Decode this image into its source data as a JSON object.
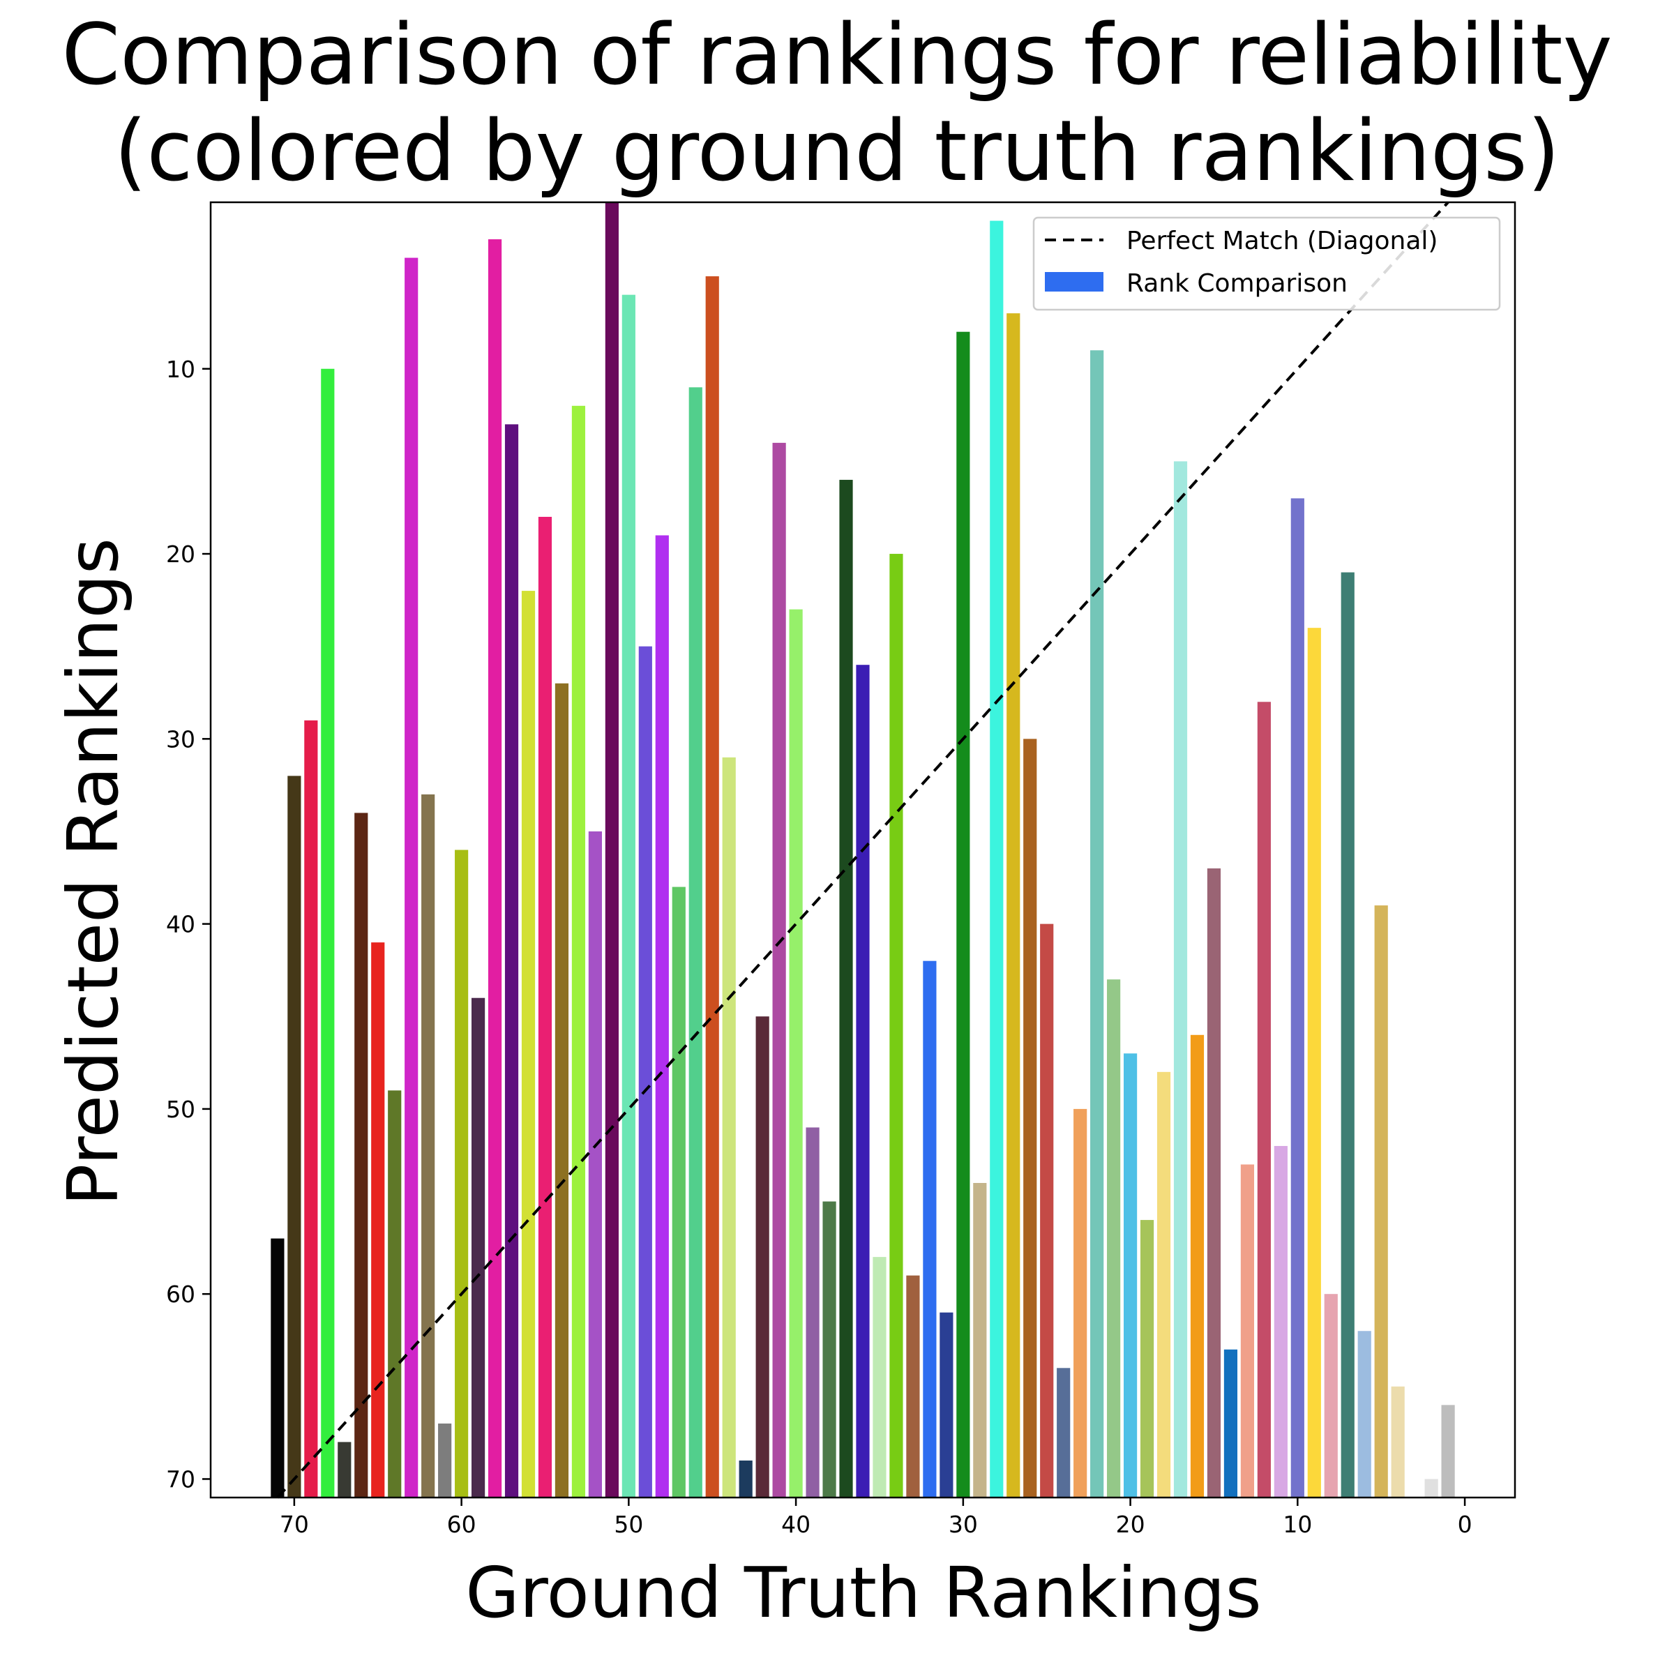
{
  "chart_data": {
    "type": "bar",
    "title": "Comparison of rankings for reliability\n(colored by ground truth rankings)",
    "title_lines": [
      "Comparison of rankings for reliability",
      "(colored by ground truth rankings)"
    ],
    "xlabel": "Ground Truth Rankings",
    "ylabel": "Predicted Rankings",
    "xlim": [
      75,
      -3
    ],
    "ylim": [
      71,
      1
    ],
    "y_inverted": true,
    "x_inverted": true,
    "xticks": [
      70,
      60,
      50,
      40,
      30,
      20,
      10,
      0
    ],
    "yticks": [
      10,
      20,
      30,
      40,
      50,
      60,
      70
    ],
    "grid": false,
    "legend_placement": "top-right",
    "legend": [
      {
        "label": "Perfect Match (Diagonal)",
        "style": "dashed-line",
        "color": "#000000"
      },
      {
        "label": "Rank Comparison",
        "style": "patch",
        "color": "#2e6df0"
      }
    ],
    "diagonal": {
      "x": [
        71,
        0
      ],
      "y": [
        71,
        0
      ],
      "color": "#000000",
      "dash": true
    },
    "bars": [
      {
        "x": 71,
        "y": 57,
        "color": "#050505"
      },
      {
        "x": 70,
        "y": 32,
        "color": "#453818"
      },
      {
        "x": 69,
        "y": 29,
        "color": "#e51c4a"
      },
      {
        "x": 68,
        "y": 10,
        "color": "#33ee3d"
      },
      {
        "x": 67,
        "y": 68,
        "color": "#383a33"
      },
      {
        "x": 66,
        "y": 34,
        "color": "#5c2614"
      },
      {
        "x": 65,
        "y": 41,
        "color": "#e8241f"
      },
      {
        "x": 64,
        "y": 49,
        "color": "#5f7828"
      },
      {
        "x": 63,
        "y": 4,
        "color": "#cf25c8"
      },
      {
        "x": 62,
        "y": 33,
        "color": "#84744e"
      },
      {
        "x": 61,
        "y": 67,
        "color": "#7d7d7d"
      },
      {
        "x": 60,
        "y": 36,
        "color": "#a7be14"
      },
      {
        "x": 59,
        "y": 44,
        "color": "#4b2a4d"
      },
      {
        "x": 58,
        "y": 3,
        "color": "#e21ea2"
      },
      {
        "x": 57,
        "y": 13,
        "color": "#5e0f7e"
      },
      {
        "x": 56,
        "y": 22,
        "color": "#d2e034"
      },
      {
        "x": 55,
        "y": 18,
        "color": "#ea1f72"
      },
      {
        "x": 54,
        "y": 27,
        "color": "#8d7022"
      },
      {
        "x": 53,
        "y": 12,
        "color": "#9df13e"
      },
      {
        "x": 52,
        "y": 35,
        "color": "#a552c6"
      },
      {
        "x": 51,
        "y": 1,
        "color": "#6a0a5c"
      },
      {
        "x": 50,
        "y": 6,
        "color": "#6be6b4"
      },
      {
        "x": 49,
        "y": 25,
        "color": "#6b4ed8"
      },
      {
        "x": 48,
        "y": 19,
        "color": "#b02ff0"
      },
      {
        "x": 47,
        "y": 38,
        "color": "#5fc764"
      },
      {
        "x": 46,
        "y": 11,
        "color": "#52cf8c"
      },
      {
        "x": 45,
        "y": 5,
        "color": "#cc4f1f"
      },
      {
        "x": 44,
        "y": 31,
        "color": "#cde57c"
      },
      {
        "x": 43,
        "y": 69,
        "color": "#1c3b5e"
      },
      {
        "x": 42,
        "y": 45,
        "color": "#5a2a38"
      },
      {
        "x": 41,
        "y": 14,
        "color": "#ad4aa2"
      },
      {
        "x": 40,
        "y": 23,
        "color": "#96f06a"
      },
      {
        "x": 39,
        "y": 51,
        "color": "#9060a4"
      },
      {
        "x": 38,
        "y": 55,
        "color": "#4d7a48"
      },
      {
        "x": 37,
        "y": 16,
        "color": "#1c4a1f"
      },
      {
        "x": 36,
        "y": 26,
        "color": "#3b1db4"
      },
      {
        "x": 35,
        "y": 58,
        "color": "#bfeab3"
      },
      {
        "x": 34,
        "y": 20,
        "color": "#78cc14"
      },
      {
        "x": 33,
        "y": 59,
        "color": "#a0603e"
      },
      {
        "x": 32,
        "y": 42,
        "color": "#2e6df0"
      },
      {
        "x": 31,
        "y": 61,
        "color": "#2a3f94"
      },
      {
        "x": 30,
        "y": 8,
        "color": "#148c1c"
      },
      {
        "x": 29,
        "y": 54,
        "color": "#c4b48a"
      },
      {
        "x": 28,
        "y": 2,
        "color": "#3cf4de"
      },
      {
        "x": 27,
        "y": 7,
        "color": "#d6b81e"
      },
      {
        "x": 26,
        "y": 30,
        "color": "#a96220"
      },
      {
        "x": 25,
        "y": 40,
        "color": "#c44a46"
      },
      {
        "x": 24,
        "y": 64,
        "color": "#576e98"
      },
      {
        "x": 23,
        "y": 50,
        "color": "#f0a05a"
      },
      {
        "x": 22,
        "y": 9,
        "color": "#74c6b8"
      },
      {
        "x": 21,
        "y": 43,
        "color": "#94c888"
      },
      {
        "x": 20,
        "y": 47,
        "color": "#4ec0e6"
      },
      {
        "x": 19,
        "y": 56,
        "color": "#a6c45a"
      },
      {
        "x": 18,
        "y": 48,
        "color": "#f4dc7c"
      },
      {
        "x": 17,
        "y": 15,
        "color": "#a2e8de"
      },
      {
        "x": 16,
        "y": 46,
        "color": "#f29c18"
      },
      {
        "x": 15,
        "y": 37,
        "color": "#9a6474"
      },
      {
        "x": 14,
        "y": 63,
        "color": "#1270be"
      },
      {
        "x": 13,
        "y": 53,
        "color": "#f0a08a"
      },
      {
        "x": 12,
        "y": 28,
        "color": "#c44c68"
      },
      {
        "x": 11,
        "y": 52,
        "color": "#d8a8e4"
      },
      {
        "x": 10,
        "y": 17,
        "color": "#7272cc"
      },
      {
        "x": 9,
        "y": 24,
        "color": "#fcd83a"
      },
      {
        "x": 8,
        "y": 60,
        "color": "#e6a4b0"
      },
      {
        "x": 7,
        "y": 21,
        "color": "#3e7e74"
      },
      {
        "x": 6,
        "y": 62,
        "color": "#9cbce0"
      },
      {
        "x": 5,
        "y": 39,
        "color": "#d4b45a"
      },
      {
        "x": 4,
        "y": 65,
        "color": "#ecdcac"
      },
      {
        "x": 2,
        "y": 70,
        "color": "#e0e0e0"
      },
      {
        "x": 1,
        "y": 66,
        "color": "#bdbdbd"
      }
    ]
  }
}
